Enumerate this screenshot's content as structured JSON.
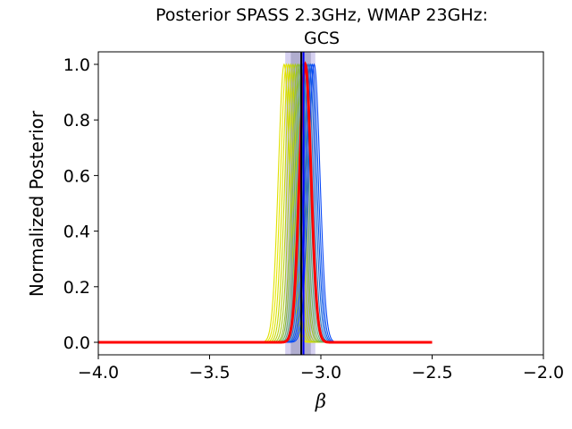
{
  "chart_data": {
    "type": "line",
    "title": "Posterior SPASS 2.3GHz, WMAP 23GHz:",
    "title_line2": "GCS",
    "xlabel": "β",
    "ylabel": "Normalized Posterior",
    "xlim": [
      -4.0,
      -2.0
    ],
    "ylim": [
      -0.045,
      1.045
    ],
    "xticks": [
      -4.0,
      -3.5,
      -3.0,
      -2.5,
      -2.0
    ],
    "xtick_labels": [
      "−4.0",
      "−3.5",
      "−3.0",
      "−2.5",
      "−2.0"
    ],
    "yticks": [
      0.0,
      0.2,
      0.4,
      0.6,
      0.8,
      1.0
    ],
    "ytick_labels": [
      "0.0",
      "0.2",
      "0.4",
      "0.6",
      "0.8",
      "1.0"
    ],
    "grid": false,
    "x_range": [
      -4.0,
      -2.5
    ],
    "posterior_width": 0.026,
    "series": [
      {
        "peak": -3.165,
        "color": "#e0e000"
      },
      {
        "peak": -3.155,
        "color": "#e8e800"
      },
      {
        "peak": -3.145,
        "color": "#d8e000"
      },
      {
        "peak": -3.135,
        "color": "#c8d800"
      },
      {
        "peak": -3.125,
        "color": "#b8d010"
      },
      {
        "peak": -3.115,
        "color": "#a8c820"
      },
      {
        "peak": -3.105,
        "color": "#98c030"
      },
      {
        "peak": -3.098,
        "color": "#88b840"
      },
      {
        "peak": -3.09,
        "color": "#70b060"
      },
      {
        "peak": -3.082,
        "color": "#60a878"
      },
      {
        "peak": -3.075,
        "color": "#4a9890"
      },
      {
        "peak": -3.068,
        "color": "#3a88a8"
      },
      {
        "peak": -3.06,
        "color": "#2a78c0"
      },
      {
        "peak": -3.052,
        "color": "#1a68d8"
      },
      {
        "peak": -3.045,
        "color": "#1058e8"
      },
      {
        "peak": -3.038,
        "color": "#0a50f0"
      },
      {
        "peak": -3.03,
        "color": "#0848f8"
      },
      {
        "peak": -3.07,
        "color": "#ff0000",
        "bold": true
      }
    ],
    "bands": [
      {
        "x1": -3.16,
        "x2": -3.025,
        "color": "#6a5acd",
        "opacity": 0.28
      },
      {
        "x1": -3.135,
        "x2": -3.045,
        "color": "#6a6a90",
        "opacity": 0.35
      }
    ],
    "vlines": [
      {
        "x": -3.088,
        "color": "#000000"
      },
      {
        "x": -3.078,
        "color": "#0000ff"
      }
    ]
  }
}
